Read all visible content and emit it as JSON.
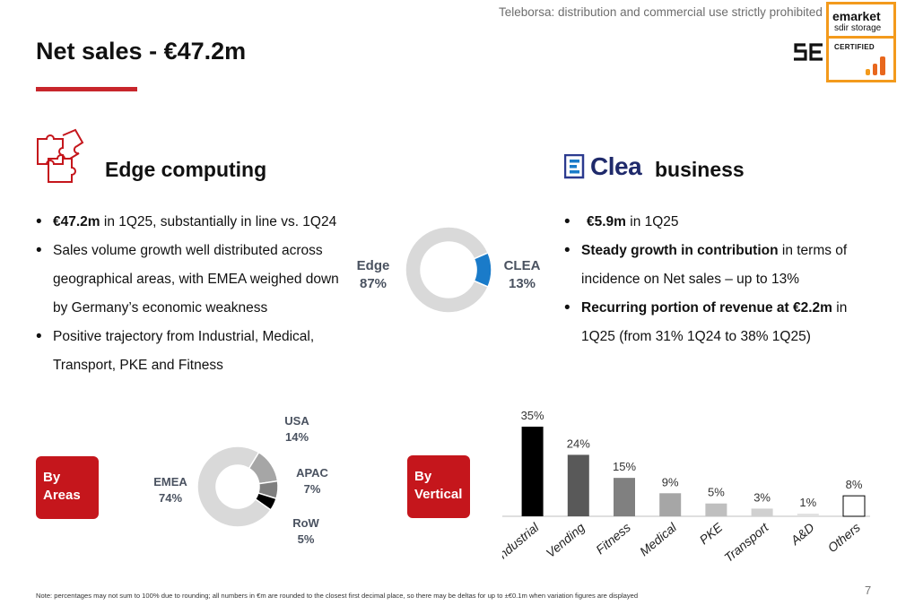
{
  "watermark": "Teleborsa: distribution and commercial use strictly prohibited",
  "title": "Net sales - €47.2m",
  "badge": {
    "line1": "emarket",
    "line2": "sdir storage",
    "line3": "CERTIFIED"
  },
  "logo": "se-logo",
  "edge": {
    "title": "Edge computing",
    "icon": "puzzle-icon",
    "bullets": [
      {
        "bold": "€47.2m",
        "text": " in 1Q25, substantially in line vs. 1Q24"
      },
      {
        "bold": "",
        "text": "Sales volume growth well distributed across geographical areas, with EMEA weighed down by Germany’s economic weakness"
      },
      {
        "bold": "",
        "text": "Positive trajectory from Industrial, Medical, Transport, PKE and Fitness"
      }
    ]
  },
  "clea": {
    "logo_text": "Clea",
    "title": "business",
    "bullets": [
      {
        "bold": "€5.9m",
        "text": " in 1Q25"
      },
      {
        "bold": "Steady growth in contribution",
        "text": " in terms of incidence on Net sales – up to 13%"
      },
      {
        "bold": "Recurring portion of revenue at €2.2m",
        "text": " in 1Q25 (from 31% 1Q24 to 38% 1Q25)"
      }
    ]
  },
  "chart_data": [
    {
      "type": "pie",
      "donut": true,
      "labels": [
        "Edge",
        "CLEA"
      ],
      "values": [
        87,
        13
      ],
      "display": [
        "87%",
        "13%"
      ],
      "colors": [
        "#d9d9d9",
        "#1a7bc9"
      ]
    },
    {
      "type": "pie",
      "donut": true,
      "title": "By Areas",
      "labels": [
        "EMEA",
        "USA",
        "APAC",
        "RoW"
      ],
      "values": [
        74,
        14,
        7,
        5
      ],
      "display": [
        "74%",
        "14%",
        "7%",
        "5%"
      ],
      "colors": [
        "#d9d9d9",
        "#a6a6a6",
        "#7f7f7f",
        "#000000"
      ]
    },
    {
      "type": "bar",
      "title": "By Vertical",
      "categories": [
        "Industrial",
        "Vending",
        "Fitness",
        "Medical",
        "PKE",
        "Transport",
        "A&D",
        "Others"
      ],
      "values": [
        35,
        24,
        15,
        9,
        5,
        3,
        1,
        8
      ],
      "display": [
        "35%",
        "24%",
        "15%",
        "9%",
        "5%",
        "3%",
        "1%",
        "8%"
      ],
      "colors": [
        "#000000",
        "#595959",
        "#808080",
        "#a6a6a6",
        "#bfbfbf",
        "#d0d0d0",
        "#e0e0e0",
        "#ffffff"
      ],
      "ylim": [
        0,
        35
      ]
    }
  ],
  "note": "Note: percentages may not sum to 100% due to rounding; all numbers in €m are rounded to the closest first decimal place, so there may be deltas for up to ±€0.1m when variation figures are displayed",
  "page_number": "7"
}
